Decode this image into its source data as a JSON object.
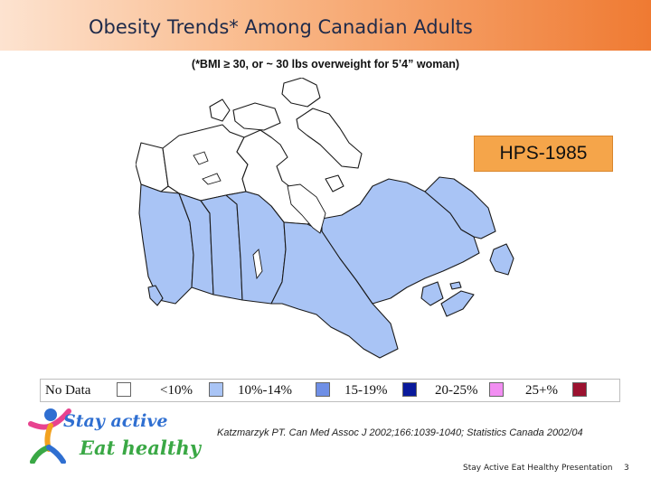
{
  "slide": {
    "title": "Obesity Trends* Among Canadian Adults",
    "subtitle": "(*BMI ≥ 30, or ~ 30 lbs overweight for 5’4” woman)",
    "survey_label": "HPS-1985",
    "citation": "Katzmarzyk PT. Can Med Assoc J 2002;166:1039-1040; Statistics Canada 2002/04",
    "footer": "Stay Active Eat Healthy Presentation",
    "page_number": "3"
  },
  "logo": {
    "line1": "Stay active",
    "line2": "Eat healthy",
    "figure_icon": "stick-figure-icon"
  },
  "legend": [
    {
      "label": "No Data",
      "color": "#ffffff"
    },
    {
      "label": "<10%",
      "color": "#a9c4f5"
    },
    {
      "label": "10%-14%",
      "color": "#6f8fe6"
    },
    {
      "label": "15-19%",
      "color": "#0a1a9c"
    },
    {
      "label": "20-25%",
      "color": "#f28ef2"
    },
    {
      "label": "25+%",
      "color": "#9c1230"
    }
  ],
  "map": {
    "regions": [
      {
        "name": "Yukon",
        "category": "No Data"
      },
      {
        "name": "Northwest Territories",
        "category": "No Data"
      },
      {
        "name": "Nunavut",
        "category": "No Data"
      },
      {
        "name": "British Columbia",
        "category": "<10%"
      },
      {
        "name": "Alberta",
        "category": "<10%"
      },
      {
        "name": "Saskatchewan",
        "category": "<10%"
      },
      {
        "name": "Manitoba",
        "category": "<10%"
      },
      {
        "name": "Ontario",
        "category": "<10%"
      },
      {
        "name": "Quebec",
        "category": "<10%"
      },
      {
        "name": "Newfoundland and Labrador",
        "category": "<10%"
      },
      {
        "name": "New Brunswick",
        "category": "<10%"
      },
      {
        "name": "Nova Scotia",
        "category": "<10%"
      },
      {
        "name": "Prince Edward Island",
        "category": "<10%"
      }
    ],
    "colors": {
      "no_data": "#ffffff",
      "lt10": "#a9c4f5",
      "border": "#1a1a1a"
    }
  }
}
